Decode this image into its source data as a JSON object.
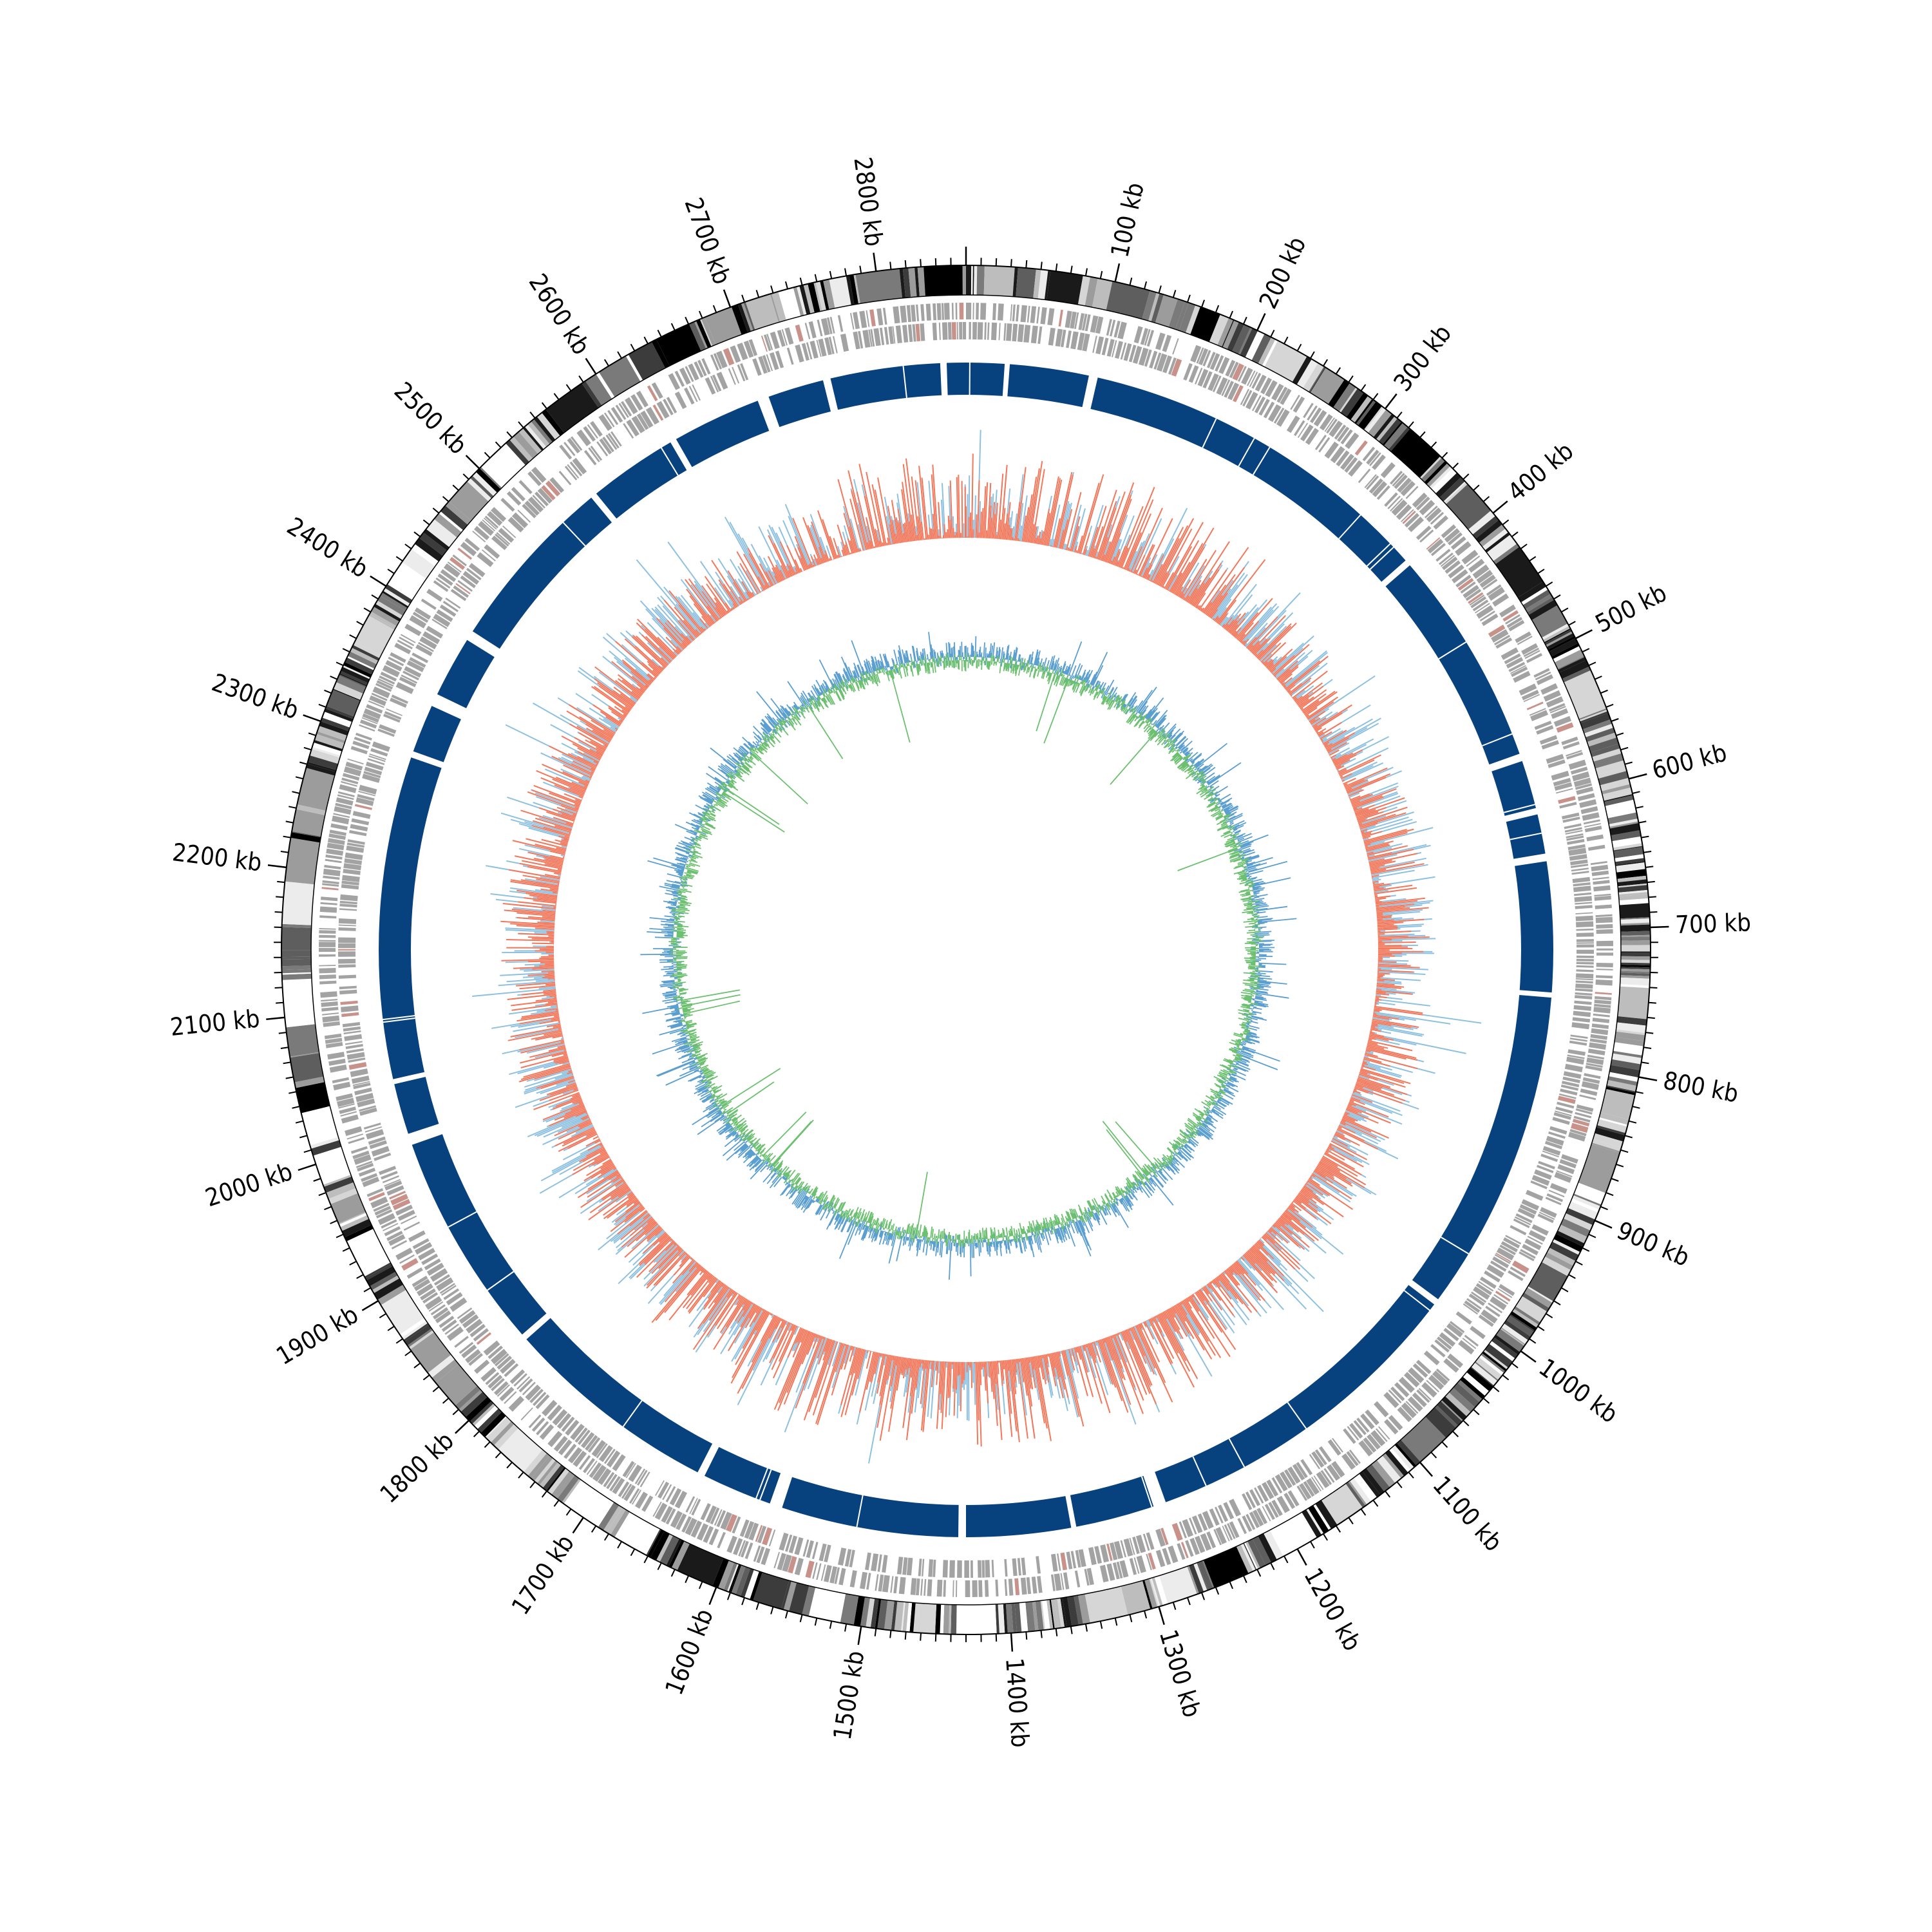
{
  "chart_data": {
    "type": "circular genome plot",
    "genome_length_kb": 2860,
    "direction": "clockwise from top",
    "tick_labels": [
      {
        "kb": 100,
        "label": "100 kb"
      },
      {
        "kb": 200,
        "label": "200 kb"
      },
      {
        "kb": 300,
        "label": "300 kb"
      },
      {
        "kb": 400,
        "label": "400 kb"
      },
      {
        "kb": 500,
        "label": "500 kb"
      },
      {
        "kb": 600,
        "label": "600 kb"
      },
      {
        "kb": 700,
        "label": "700 kb"
      },
      {
        "kb": 800,
        "label": "800 kb"
      },
      {
        "kb": 900,
        "label": "900 kb"
      },
      {
        "kb": 1000,
        "label": "1000 kb"
      },
      {
        "kb": 1100,
        "label": "1100 kb"
      },
      {
        "kb": 1200,
        "label": "1200 kb"
      },
      {
        "kb": 1300,
        "label": "1300 kb"
      },
      {
        "kb": 1400,
        "label": "1400 kb"
      },
      {
        "kb": 1500,
        "label": "1500 kb"
      },
      {
        "kb": 1600,
        "label": "1600 kb"
      },
      {
        "kb": 1700,
        "label": "1700 kb"
      },
      {
        "kb": 1800,
        "label": "1800 kb"
      },
      {
        "kb": 1900,
        "label": "1900 kb"
      },
      {
        "kb": 2000,
        "label": "2000 kb"
      },
      {
        "kb": 2100,
        "label": "2100 kb"
      },
      {
        "kb": 2200,
        "label": "2200 kb"
      },
      {
        "kb": 2300,
        "label": "2300 kb"
      },
      {
        "kb": 2400,
        "label": "2400 kb"
      },
      {
        "kb": 2500,
        "label": "2500 kb"
      },
      {
        "kb": 2600,
        "label": "2600 kb"
      },
      {
        "kb": 2700,
        "label": "2700 kb"
      },
      {
        "kb": 2800,
        "label": "2800 kb"
      }
    ],
    "minor_tick_step_kb": 10,
    "tracks": [
      {
        "id": "cytoband",
        "style": "grayscale bands"
      },
      {
        "id": "features",
        "style": "gray gene blocks, two strands"
      },
      {
        "id": "coverage",
        "style": "solid blue blocks with gaps",
        "gap_intervals_kb": [
          [
            30,
            34
          ],
          [
            96,
            103
          ],
          [
            385,
            390
          ],
          [
            560,
            566
          ],
          [
            604,
            609
          ],
          [
            640,
            646
          ],
          [
            748,
            752
          ],
          [
            1005,
            1010
          ],
          [
            1272,
            1282
          ],
          [
            1344,
            1348
          ],
          [
            1430,
            1436
          ],
          [
            1575,
            1585
          ],
          [
            1640,
            1646
          ],
          [
            1815,
            1820
          ],
          [
            1991,
            2000
          ],
          [
            2040,
            2044
          ],
          [
            2297,
            2302
          ],
          [
            2340,
            2350
          ],
          [
            2398,
            2406
          ],
          [
            2545,
            2550
          ],
          [
            2620,
            2625
          ],
          [
            2695,
            2704
          ],
          [
            2748,
            2754
          ],
          [
            2840,
            2845
          ]
        ]
      },
      {
        "id": "outer-histogram",
        "style": "red and light-blue bars around a baseline"
      },
      {
        "id": "inner-line",
        "style": "blue and green lines around a baseline"
      }
    ],
    "colors": {
      "coverage": "#08427e",
      "feature": "#a3a3a3",
      "hist_red": "#f4775a",
      "hist_blue": "#8ec1e0",
      "line_blue": "#5b9fd0",
      "line_green": "#6cc070",
      "ink": "#000000"
    }
  }
}
